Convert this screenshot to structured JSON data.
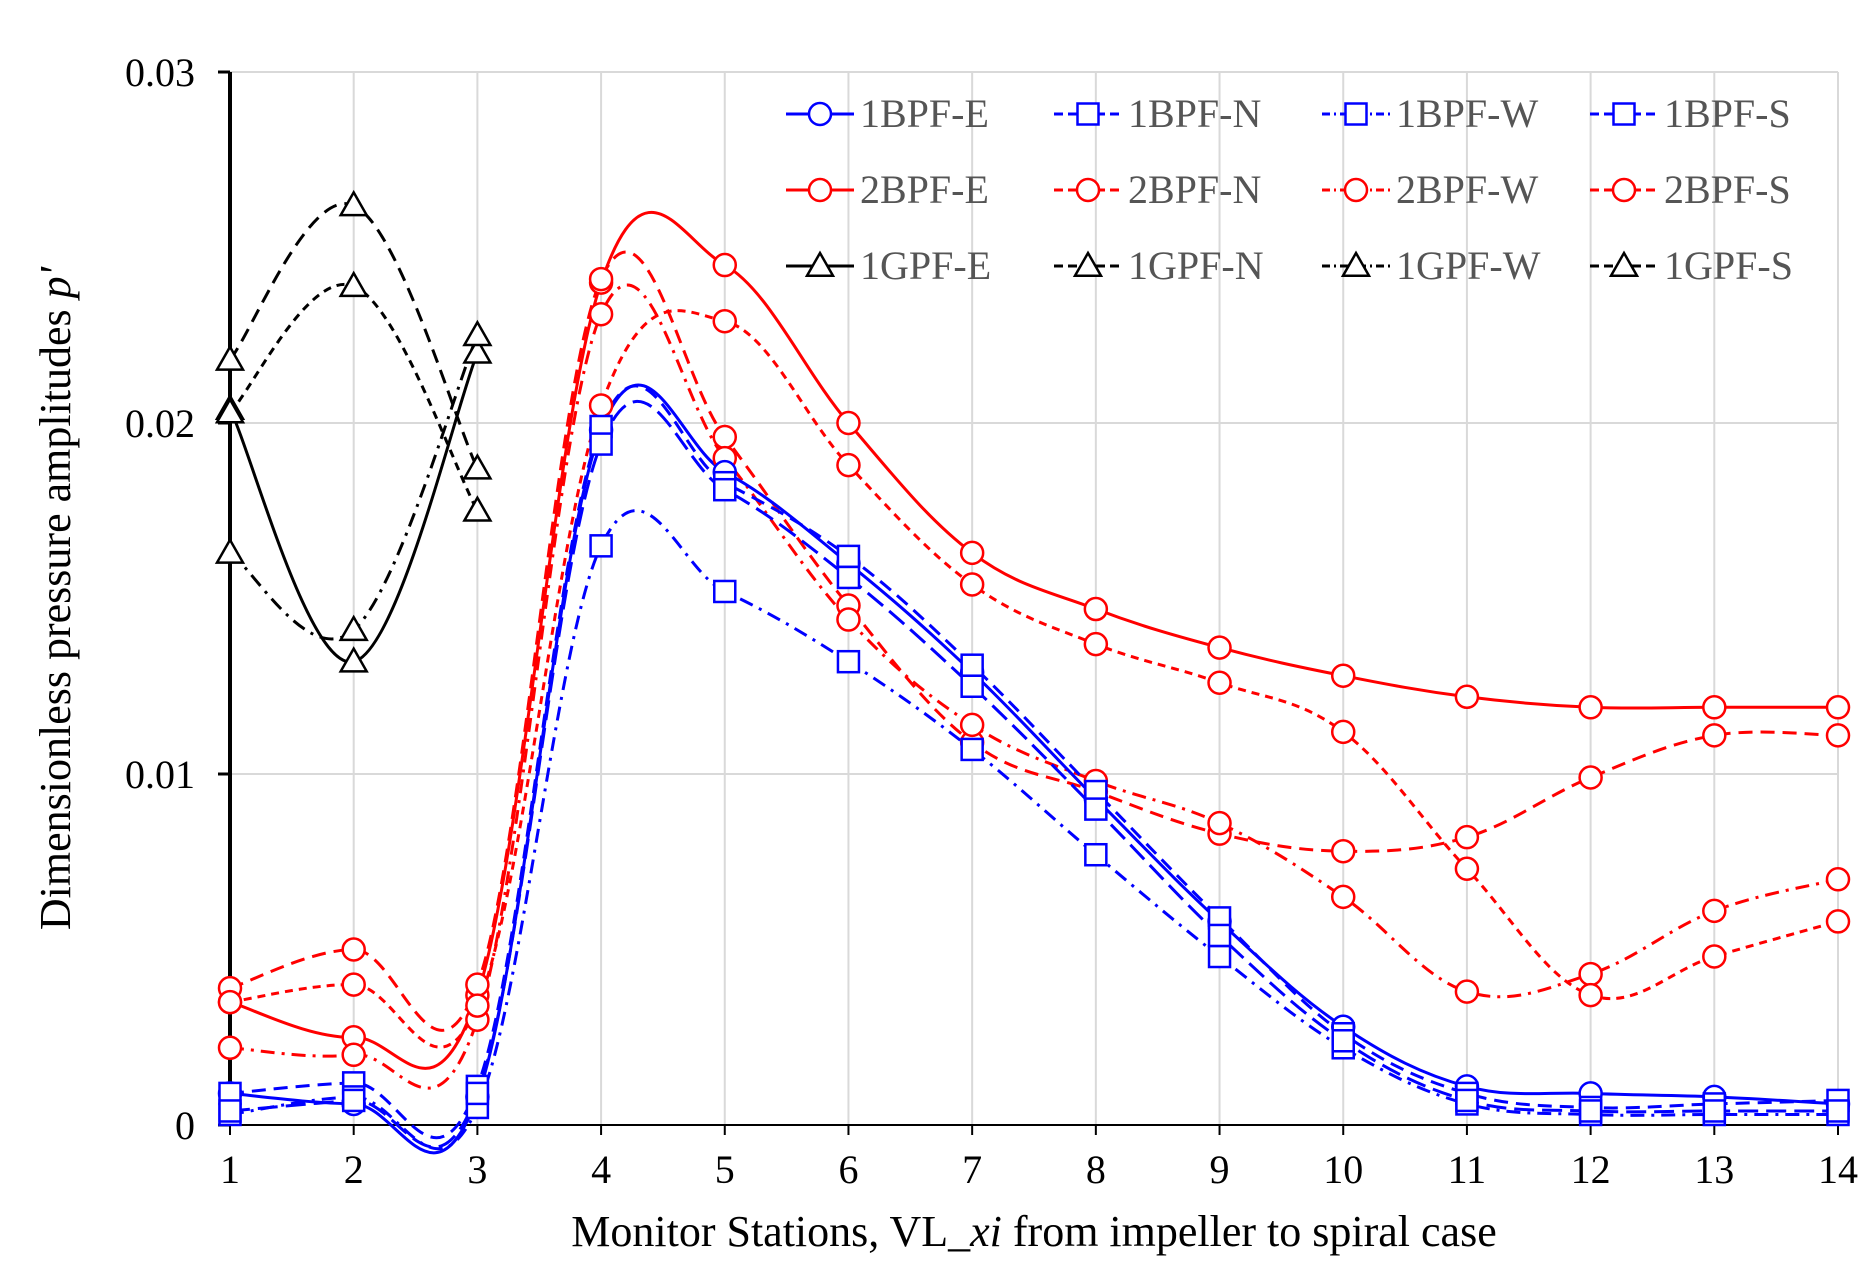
{
  "chart_data": {
    "type": "line",
    "title": "",
    "xlabel": "Monitor Stations, VL_xi from impeller to spiral case",
    "xlabel_parts": [
      "Monitor Stations, VL_",
      "xi",
      " from impeller to spiral case"
    ],
    "ylabel": "Dimensionless pressure amplitudes p'",
    "ylabel_parts": [
      "Dimensionless pressure amplitudes ",
      "p'"
    ],
    "xlim": [
      1,
      14
    ],
    "ylim": [
      0,
      0.03
    ],
    "x_ticks": [
      "1",
      "2",
      "3",
      "4",
      "5",
      "6",
      "7",
      "8",
      "9",
      "10",
      "11",
      "12",
      "13",
      "14"
    ],
    "y_ticks": [
      {
        "value": 0,
        "label": "0"
      },
      {
        "value": 0.01,
        "label": "0.01"
      },
      {
        "value": 0.02,
        "label": "0.02"
      },
      {
        "value": 0.03,
        "label": "0.03"
      }
    ],
    "grid": "vertical and horizontal gridlines",
    "legend_position": "top-right",
    "colors": {
      "BPF1": "#0000ff",
      "BPF2": "#ff0000",
      "GPF1": "#000000",
      "grid": "#d9d9d9",
      "axis": "#000000"
    },
    "series": [
      {
        "name": "1BPF-E",
        "color": "#0000ff",
        "dash": "solid",
        "marker": "circle",
        "x": [
          1,
          2,
          3,
          4,
          5,
          6,
          7,
          8,
          9,
          10,
          11,
          12,
          13,
          14
        ],
        "y": [
          0.0009,
          0.0006,
          0.0008,
          0.0198,
          0.0186,
          0.016,
          0.0129,
          0.0093,
          0.0058,
          0.0028,
          0.0011,
          0.0009,
          0.0008,
          0.0006
        ]
      },
      {
        "name": "1BPF-N",
        "color": "#0000ff",
        "dash": "dash",
        "marker": "square",
        "x": [
          1,
          2,
          3,
          4,
          5,
          6,
          7,
          8,
          9,
          10,
          11,
          12,
          13,
          14
        ],
        "y": [
          0.0009,
          0.0012,
          0.0011,
          0.0199,
          0.0183,
          0.0162,
          0.0131,
          0.0095,
          0.0059,
          0.0026,
          0.0009,
          0.0005,
          0.0006,
          0.0007
        ]
      },
      {
        "name": "1BPF-W",
        "color": "#0000ff",
        "dash": "dashdot",
        "marker": "square",
        "x": [
          1,
          2,
          3,
          4,
          5,
          6,
          7,
          8,
          9,
          10,
          11,
          12,
          13,
          14
        ],
        "y": [
          0.0003,
          0.0008,
          0.0005,
          0.0165,
          0.0152,
          0.0132,
          0.0107,
          0.0077,
          0.0048,
          0.0022,
          0.0006,
          0.0003,
          0.0003,
          0.0003
        ]
      },
      {
        "name": "1BPF-S",
        "color": "#0000ff",
        "dash": "longdash",
        "marker": "square",
        "x": [
          1,
          2,
          3,
          4,
          5,
          6,
          7,
          8,
          9,
          10,
          11,
          12,
          13,
          14
        ],
        "y": [
          0.0004,
          0.0007,
          0.0009,
          0.0194,
          0.0181,
          0.0156,
          0.0125,
          0.009,
          0.0054,
          0.0024,
          0.0007,
          0.0004,
          0.0004,
          0.0004
        ]
      },
      {
        "name": "2BPF-E",
        "color": "#ff0000",
        "dash": "solid",
        "marker": "circle",
        "x": [
          1,
          2,
          3,
          4,
          5,
          6,
          7,
          8,
          9,
          10,
          11,
          12,
          13,
          14
        ],
        "y": [
          0.0035,
          0.0025,
          0.0037,
          0.024,
          0.0245,
          0.02,
          0.0163,
          0.0147,
          0.0136,
          0.0128,
          0.0122,
          0.0119,
          0.0119,
          0.0119
        ]
      },
      {
        "name": "2BPF-N",
        "color": "#ff0000",
        "dash": "dash",
        "marker": "circle",
        "x": [
          1,
          2,
          3,
          4,
          5,
          6,
          7,
          8,
          9,
          10,
          11,
          12,
          13,
          14
        ],
        "y": [
          0.0039,
          0.005,
          0.004,
          0.0241,
          0.0196,
          0.0148,
          0.0109,
          0.0095,
          0.0083,
          0.0078,
          0.0082,
          0.0099,
          0.0111,
          0.0111
        ]
      },
      {
        "name": "2BPF-W",
        "color": "#ff0000",
        "dash": "dashdot",
        "marker": "circle",
        "x": [
          1,
          2,
          3,
          4,
          5,
          6,
          7,
          8,
          9,
          10,
          11,
          12,
          13,
          14
        ],
        "y": [
          0.0022,
          0.002,
          0.003,
          0.0231,
          0.019,
          0.0144,
          0.0114,
          0.0098,
          0.0086,
          0.0065,
          0.0038,
          0.0043,
          0.0061,
          0.007
        ]
      },
      {
        "name": "2BPF-S",
        "color": "#ff0000",
        "dash": "shortdash",
        "marker": "circle",
        "x": [
          1,
          2,
          3,
          4,
          5,
          6,
          7,
          8,
          9,
          10,
          11,
          12,
          13,
          14
        ],
        "y": [
          0.0035,
          0.004,
          0.0034,
          0.0205,
          0.0229,
          0.0188,
          0.0154,
          0.0137,
          0.0126,
          0.0112,
          0.0073,
          0.0037,
          0.0048,
          0.0058
        ]
      },
      {
        "name": "1GPF-E",
        "color": "#000000",
        "dash": "solid",
        "marker": "triangle",
        "x": [
          1,
          2,
          3
        ],
        "y": [
          0.0204,
          0.0132,
          0.022
        ]
      },
      {
        "name": "1GPF-N",
        "color": "#000000",
        "dash": "dash",
        "marker": "triangle",
        "x": [
          1,
          2,
          3
        ],
        "y": [
          0.0218,
          0.0262,
          0.0187
        ]
      },
      {
        "name": "1GPF-W",
        "color": "#000000",
        "dash": "dashdot",
        "marker": "triangle",
        "x": [
          1,
          2,
          3
        ],
        "y": [
          0.0163,
          0.0141,
          0.0225
        ]
      },
      {
        "name": "1GPF-S",
        "color": "#000000",
        "dash": "shortdash",
        "marker": "triangle",
        "x": [
          1,
          2,
          3
        ],
        "y": [
          0.0203,
          0.0239,
          0.0175
        ]
      }
    ]
  }
}
